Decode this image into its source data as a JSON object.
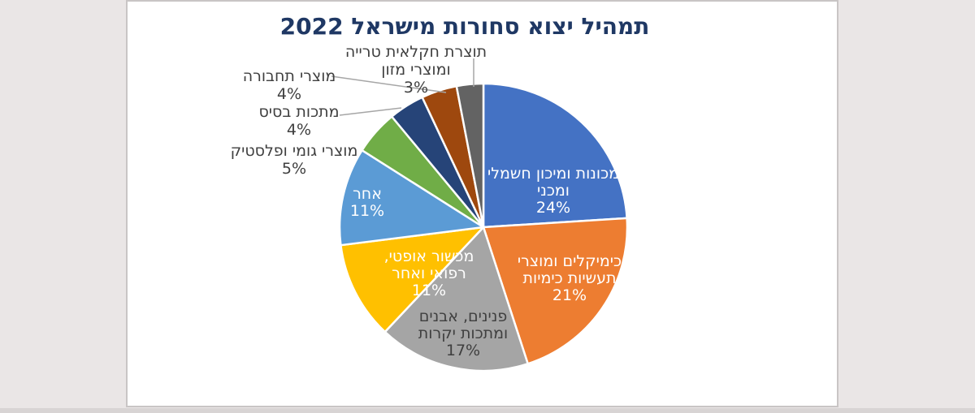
{
  "page": {
    "background_color": "#EAE6E6",
    "panel_background": "#FFFFFF",
    "panel_border_color": "#C9C5C5",
    "title_color": "#1F3864",
    "leader_line_color": "#A6A6A6"
  },
  "chart_data": {
    "type": "pie",
    "title": "תמהיל יצוא סחורות מישראל 2022",
    "unit": "%",
    "start_angle_deg": 0,
    "direction": "clockwise",
    "legend": "none",
    "total": 100,
    "slices": [
      {
        "label": "מכונות ומיכון חשמלי ומכני",
        "value": 24,
        "pct_label": "24%",
        "color": "#4472C4",
        "label_placement": "inside",
        "label_color": "#FFFFFF",
        "lines": [
          "מכונות ומיכון חשמלי",
          "ומכני",
          "24%"
        ]
      },
      {
        "label": "כימיקלים ומוצרי תעשיות כימיות",
        "value": 21,
        "pct_label": "21%",
        "color": "#ED7D31",
        "label_placement": "inside",
        "label_color": "#FFFFFF",
        "lines": [
          "כימיקלים ומוצרי",
          "תעשיות כימיות",
          "21%"
        ]
      },
      {
        "label": "פנינים, אבנים ומתכות יקרות",
        "value": 17,
        "pct_label": "17%",
        "color": "#A5A5A5",
        "label_placement": "inside",
        "label_color": "#3F3F3F",
        "lines": [
          "פנינים, אבנים",
          "ומתכות יקרות",
          "17%"
        ]
      },
      {
        "label": "מכשור אופטי, רפואי ואחר",
        "value": 11,
        "pct_label": "11%",
        "color": "#FFC000",
        "label_placement": "inside",
        "label_color": "#FFFFFF",
        "lines": [
          "מכשור אופטי,",
          "רפואי ואחר",
          "11%"
        ]
      },
      {
        "label": "אחר",
        "value": 11,
        "pct_label": "11%",
        "color": "#5B9BD5",
        "label_placement": "inside",
        "label_color": "#FFFFFF",
        "lines": [
          "אחר",
          "11%"
        ]
      },
      {
        "label": "מוצרי גומי ופלסטיק",
        "value": 5,
        "pct_label": "5%",
        "color": "#70AD47",
        "label_placement": "outside",
        "label_color": "#3F3F3F",
        "lines": [
          "מוצרי גומי ופלסטיק",
          "5%"
        ]
      },
      {
        "label": "מתכות בסיס",
        "value": 4,
        "pct_label": "4%",
        "color": "#264478",
        "label_placement": "outside",
        "label_color": "#3F3F3F",
        "lines": [
          "מתכות בסיס",
          "4%"
        ]
      },
      {
        "label": "מוצרי תחבורה",
        "value": 4,
        "pct_label": "4%",
        "color": "#9E480E",
        "label_placement": "outside",
        "label_color": "#3F3F3F",
        "lines": [
          "מוצרי תחבורה",
          "4%"
        ]
      },
      {
        "label": "תוצרת חקלאית טרייה ומוצרי מזון",
        "value": 3,
        "pct_label": "3%",
        "color": "#636363",
        "label_placement": "outside",
        "label_color": "#3F3F3F",
        "lines": [
          "תוצרת חקלאית טרייה",
          "ומוצרי מזון",
          "3%"
        ]
      }
    ]
  }
}
